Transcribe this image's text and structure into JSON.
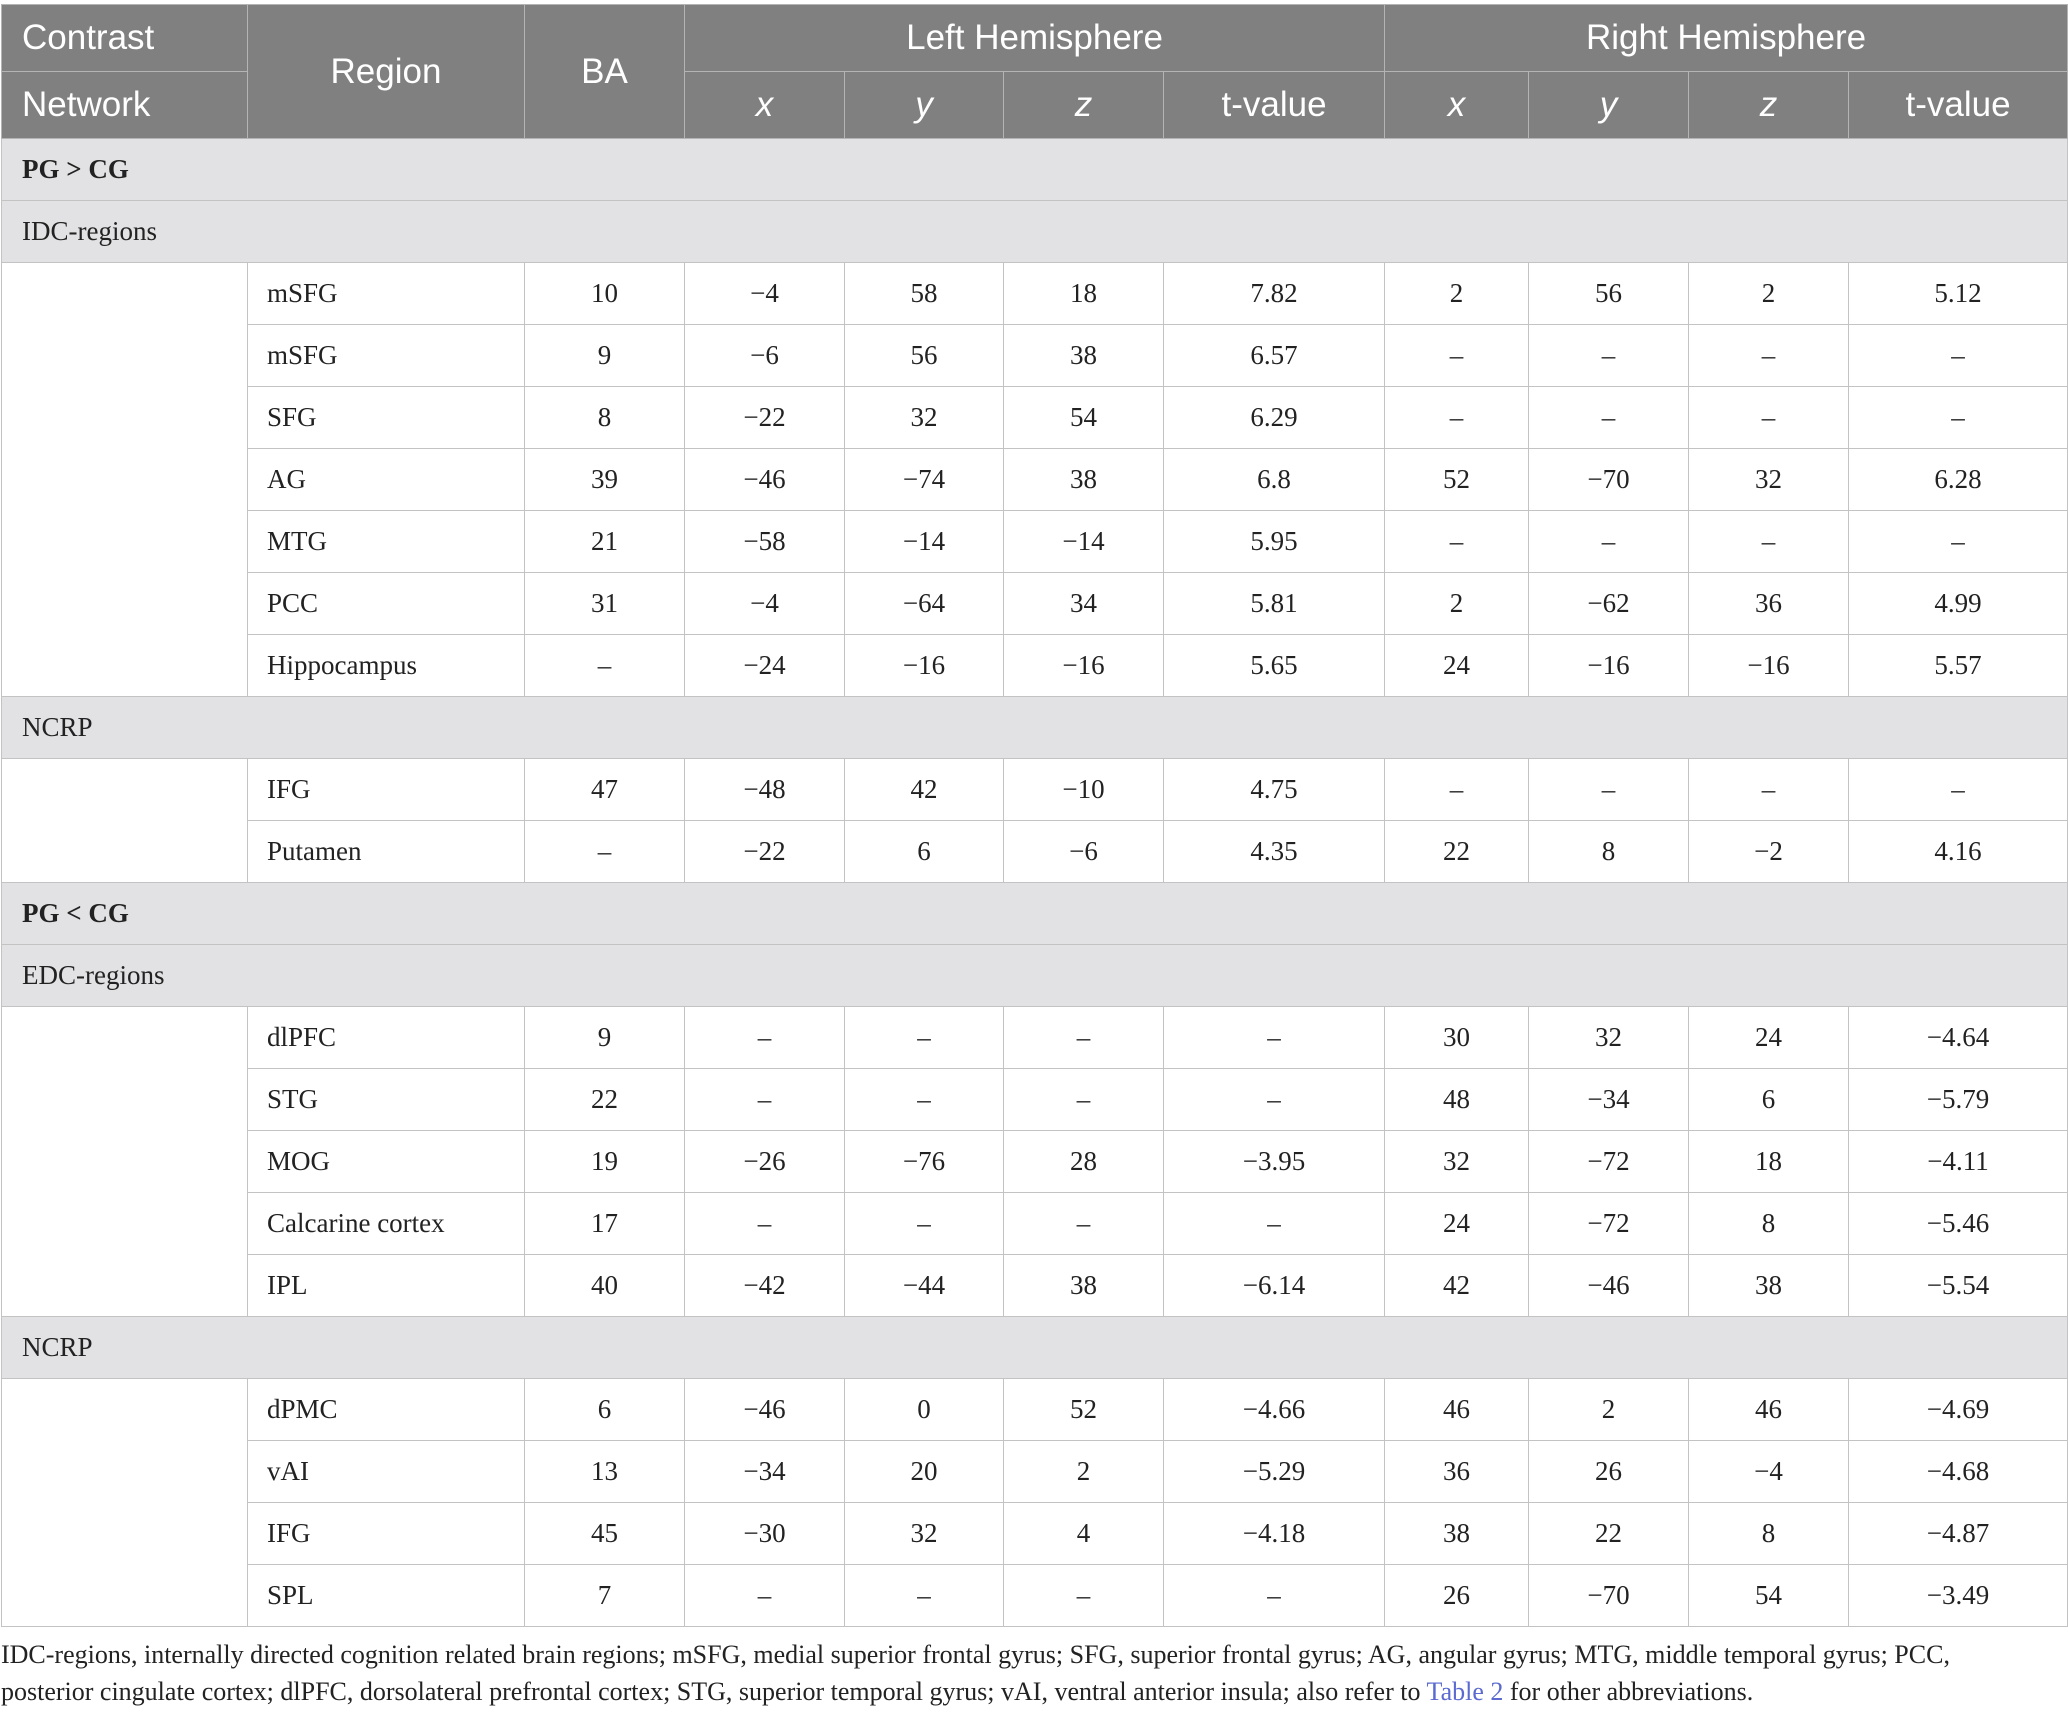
{
  "header": {
    "contrast": "Contrast",
    "network": "Network",
    "region": "Region",
    "ba": "BA",
    "left_hemisphere": "Left Hemisphere",
    "right_hemisphere": "Right Hemisphere",
    "x": "x",
    "y": "y",
    "z": "z",
    "t": "t-value"
  },
  "sections": [
    {
      "contrast": "PG > CG",
      "groups": [
        {
          "network": "IDC-regions",
          "rows": [
            [
              "mSFG",
              "10",
              "−4",
              "58",
              "18",
              "7.82",
              "2",
              "56",
              "2",
              "5.12"
            ],
            [
              "mSFG",
              "9",
              "−6",
              "56",
              "38",
              "6.57",
              "–",
              "–",
              "–",
              "–"
            ],
            [
              "SFG",
              "8",
              "−22",
              "32",
              "54",
              "6.29",
              "–",
              "–",
              "–",
              "–"
            ],
            [
              "AG",
              "39",
              "−46",
              "−74",
              "38",
              "6.8",
              "52",
              "−70",
              "32",
              "6.28"
            ],
            [
              "MTG",
              "21",
              "−58",
              "−14",
              "−14",
              "5.95",
              "–",
              "–",
              "–",
              "–"
            ],
            [
              "PCC",
              "31",
              "−4",
              "−64",
              "34",
              "5.81",
              "2",
              "−62",
              "36",
              "4.99"
            ],
            [
              "Hippocampus",
              "–",
              "−24",
              "−16",
              "−16",
              "5.65",
              "24",
              "−16",
              "−16",
              "5.57"
            ]
          ]
        },
        {
          "network": "NCRP",
          "rows": [
            [
              "IFG",
              "47",
              "−48",
              "42",
              "−10",
              "4.75",
              "–",
              "–",
              "–",
              "–"
            ],
            [
              "Putamen",
              "–",
              "−22",
              "6",
              "−6",
              "4.35",
              "22",
              "8",
              "−2",
              "4.16"
            ]
          ]
        }
      ]
    },
    {
      "contrast": "PG < CG",
      "groups": [
        {
          "network": "EDC-regions",
          "rows": [
            [
              "dlPFC",
              "9",
              "–",
              "–",
              "–",
              "–",
              "30",
              "32",
              "24",
              "−4.64"
            ],
            [
              "STG",
              "22",
              "–",
              "–",
              "–",
              "–",
              "48",
              "−34",
              "6",
              "−5.79"
            ],
            [
              "MOG",
              "19",
              "−26",
              "−76",
              "28",
              "−3.95",
              "32",
              "−72",
              "18",
              "−4.11"
            ],
            [
              "Calcarine cortex",
              "17",
              "–",
              "–",
              "–",
              "–",
              "24",
              "−72",
              "8",
              "−5.46"
            ],
            [
              "IPL",
              "40",
              "−42",
              "−44",
              "38",
              "−6.14",
              "42",
              "−46",
              "38",
              "−5.54"
            ]
          ]
        },
        {
          "network": "NCRP",
          "rows": [
            [
              "dPMC",
              "6",
              "−46",
              "0",
              "52",
              "−4.66",
              "46",
              "2",
              "46",
              "−4.69"
            ],
            [
              "vAI",
              "13",
              "−34",
              "20",
              "2",
              "−5.29",
              "36",
              "26",
              "−4",
              "−4.68"
            ],
            [
              "IFG",
              "45",
              "−30",
              "32",
              "4",
              "−4.18",
              "38",
              "22",
              "8",
              "−4.87"
            ],
            [
              "SPL",
              "7",
              "–",
              "–",
              "–",
              "–",
              "26",
              "−70",
              "54",
              "−3.49"
            ]
          ]
        }
      ]
    }
  ],
  "note": {
    "text_before": "IDC-regions, internally directed cognition related brain regions; mSFG, medial superior frontal gyrus; SFG, superior frontal gyrus; AG, angular gyrus; MTG, middle temporal gyrus; PCC, posterior cingulate cortex; dlPFC, dorsolateral prefrontal cortex; STG, superior temporal gyrus; vAI, ventral anterior insula; also refer to ",
    "link": "Table 2",
    "text_after": " for other abbreviations."
  }
}
